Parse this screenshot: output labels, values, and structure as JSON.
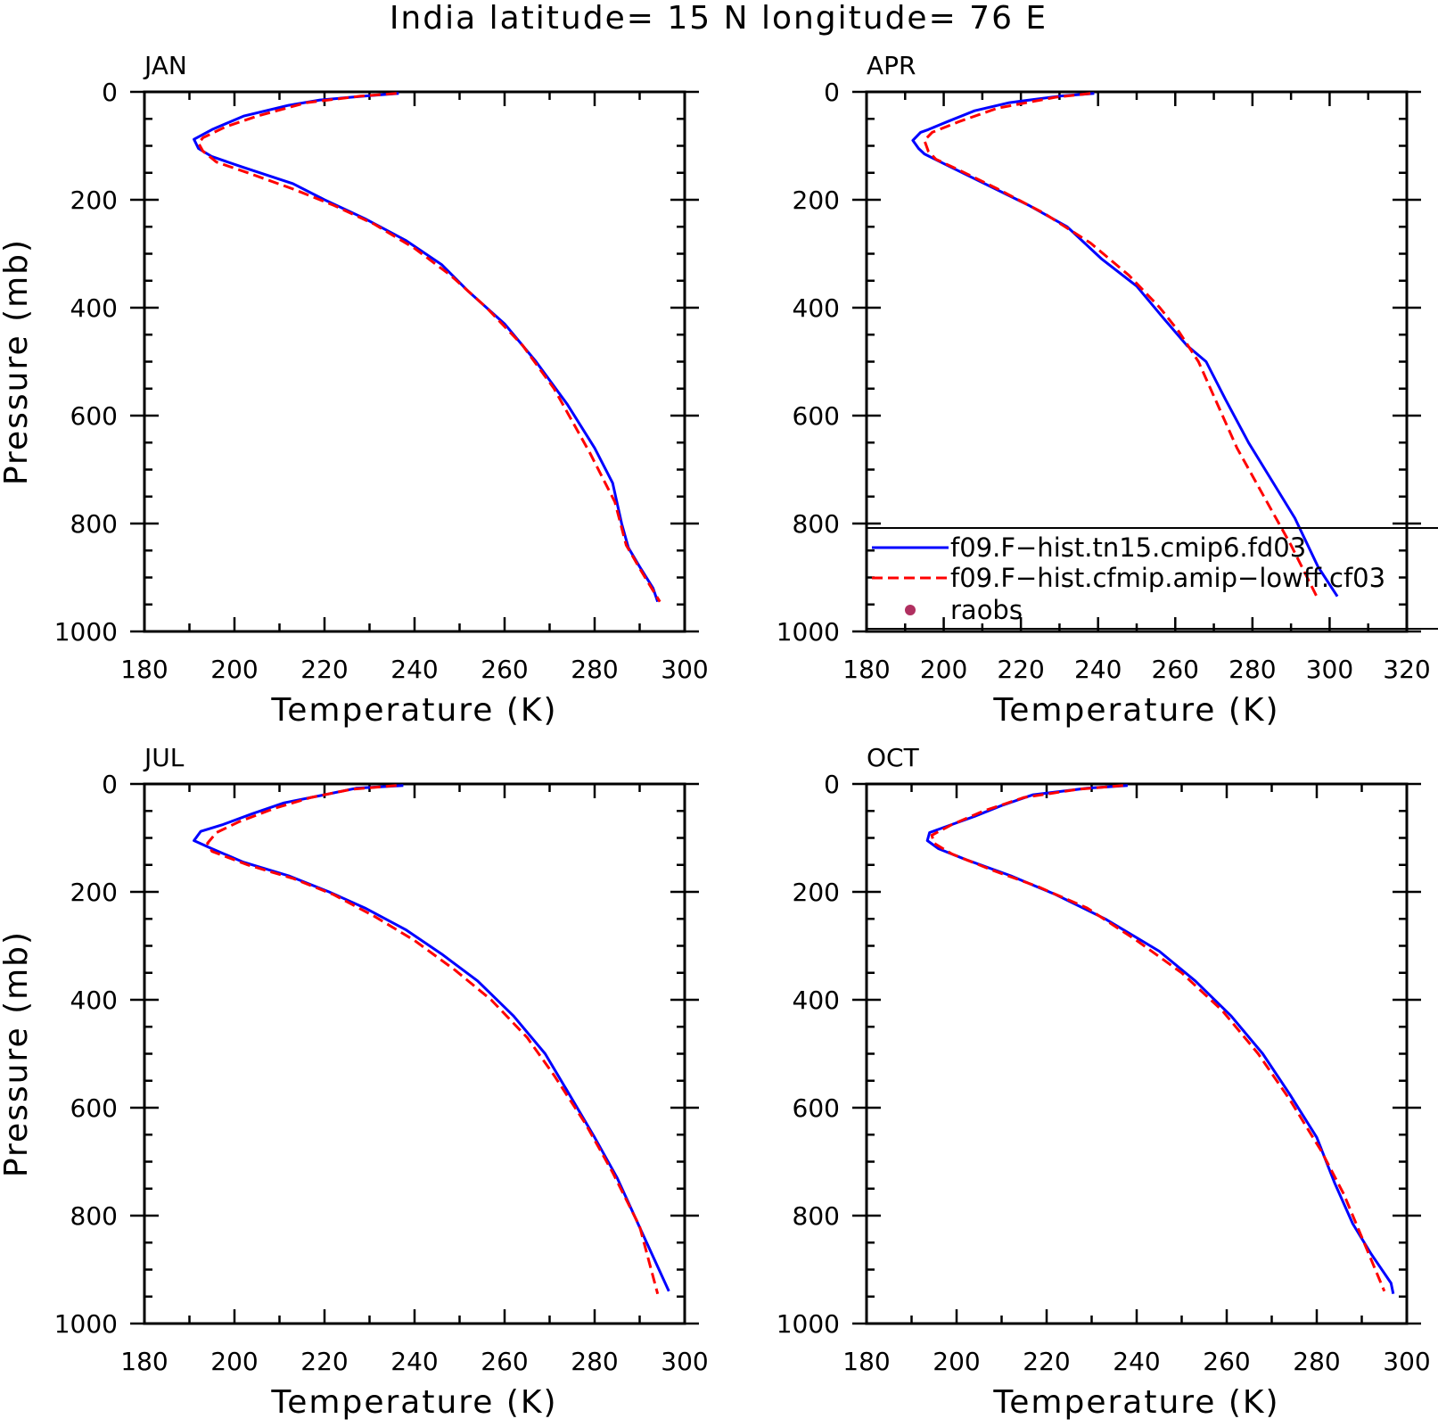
{
  "title": "India  latitude= 15 N longitude= 76 E",
  "legend": {
    "entries": [
      {
        "label": "f09.F−hist.tn15.cmip6.fd03",
        "color": "#0000ff",
        "style": "solid"
      },
      {
        "label": "f09.F−hist.cfmip.amip−lowff.cf03",
        "color": "#ff0000",
        "style": "dashed"
      },
      {
        "label": "raobs",
        "color": "#b03060",
        "style": "dot"
      }
    ]
  },
  "chart_data": [
    {
      "type": "line",
      "panel_label": "JAN",
      "xlabel": "Temperature (K)",
      "ylabel": "Pressure (mb)",
      "xlim": [
        180,
        300
      ],
      "ylim": [
        1000,
        0
      ],
      "x_ticks": [
        180,
        200,
        220,
        240,
        260,
        280,
        300
      ],
      "y_ticks": [
        0,
        200,
        400,
        600,
        800,
        1000
      ],
      "grid": false,
      "series": [
        {
          "name": "f09.F−hist.tn15.cmip6.fd03",
          "color": "#0000ff",
          "dash": "solid",
          "temperature": [
            236.5,
            230.0,
            219.0,
            212.0,
            202.0,
            195.0,
            191.0,
            192.0,
            195.0,
            202.0,
            213.0,
            220.0,
            229.0,
            238.0,
            246.0,
            252.0,
            260.0,
            267.0,
            274.0,
            280.0,
            284.0,
            286.0,
            287.5,
            290.0,
            293.0,
            294.0
          ],
          "pressure": [
            3,
            7,
            15,
            25,
            45,
            70,
            88,
            105,
            120,
            140,
            170,
            200,
            235,
            275,
            320,
            370,
            430,
            500,
            580,
            660,
            725,
            800,
            845,
            880,
            920,
            945
          ]
        },
        {
          "name": "f09.F−hist.cfmip.amip−lowff.cf03",
          "color": "#ff0000",
          "dash": "dashed",
          "temperature": [
            236.0,
            228.0,
            216.0,
            205.0,
            198.0,
            193.0,
            192.0,
            193.0,
            196.0,
            203.0,
            213.0,
            222.0,
            231.0,
            240.0,
            248.0,
            256.0,
            264.0,
            271.0,
            279.0,
            284.5,
            287.0,
            290.5,
            294.5
          ],
          "pressure": [
            3,
            8,
            20,
            45,
            65,
            85,
            95,
            110,
            130,
            150,
            180,
            210,
            245,
            290,
            340,
            400,
            470,
            550,
            670,
            760,
            840,
            890,
            945
          ]
        }
      ]
    },
    {
      "type": "line",
      "panel_label": "APR",
      "xlabel": "Temperature (K)",
      "ylabel": "",
      "xlim": [
        180,
        320
      ],
      "ylim": [
        1000,
        0
      ],
      "x_ticks": [
        180,
        200,
        220,
        240,
        260,
        280,
        300,
        320
      ],
      "y_ticks": [
        0,
        200,
        400,
        600,
        800,
        1000
      ],
      "grid": false,
      "series": [
        {
          "name": "f09.F−hist.tn15.cmip6.fd03",
          "color": "#0000ff",
          "dash": "solid",
          "temperature": [
            239.0,
            230.0,
            217.0,
            208.0,
            201.0,
            196.0,
            194.0,
            192.0,
            193.5,
            195.0,
            202.0,
            212.0,
            222.0,
            232.0,
            241.0,
            250.0,
            257.0,
            263.0,
            268.0,
            273.0,
            279.0,
            285.0,
            291.0,
            297.0,
            302.0
          ],
          "pressure": [
            3,
            8,
            20,
            35,
            55,
            70,
            75,
            90,
            105,
            115,
            140,
            175,
            210,
            250,
            310,
            360,
            420,
            470,
            500,
            570,
            650,
            720,
            790,
            880,
            935
          ]
        },
        {
          "name": "f09.F−hist.cfmip.amip−lowff.cf03",
          "color": "#ff0000",
          "dash": "dashed",
          "temperature": [
            238.0,
            229.0,
            214.0,
            204.0,
            197.0,
            195.0,
            196.0,
            198.0,
            204.0,
            214.0,
            226.0,
            238.0,
            248.0,
            256.0,
            261.0,
            266.0,
            271.0,
            276.0,
            283.0,
            290.0,
            297.0
          ],
          "pressure": [
            3,
            10,
            30,
            55,
            75,
            90,
            110,
            125,
            145,
            180,
            225,
            280,
            340,
            400,
            445,
            500,
            580,
            660,
            750,
            840,
            940
          ]
        }
      ]
    },
    {
      "type": "line",
      "panel_label": "JUL",
      "xlabel": "Temperature (K)",
      "ylabel": "Pressure (mb)",
      "xlim": [
        180,
        300
      ],
      "ylim": [
        1000,
        0
      ],
      "x_ticks": [
        180,
        200,
        220,
        240,
        260,
        280,
        300
      ],
      "y_ticks": [
        0,
        200,
        400,
        600,
        800,
        1000
      ],
      "grid": false,
      "series": [
        {
          "name": "f09.F−hist.tn15.cmip6.fd03",
          "color": "#0000ff",
          "dash": "solid",
          "temperature": [
            237.5,
            227.0,
            220.0,
            211.0,
            204.0,
            197.5,
            192.5,
            191.0,
            195.0,
            202.0,
            212.0,
            221.0,
            229.0,
            238.0,
            246.0,
            254.0,
            262.0,
            269.0,
            274.0,
            280.0,
            285.0,
            291.0,
            296.5
          ],
          "pressure": [
            3,
            8,
            20,
            35,
            55,
            75,
            88,
            105,
            120,
            145,
            170,
            200,
            230,
            270,
            315,
            365,
            430,
            500,
            570,
            655,
            730,
            840,
            940
          ]
        },
        {
          "name": "f09.F−hist.cfmip.amip−lowff.cf03",
          "color": "#ff0000",
          "dash": "dashed",
          "temperature": [
            236.0,
            226.0,
            217.0,
            209.0,
            201.0,
            196.0,
            194.0,
            195.0,
            203.0,
            213.0,
            222.0,
            231.0,
            240.0,
            249.0,
            257.0,
            265.0,
            271.0,
            278.0,
            284.0,
            290.0,
            294.0
          ],
          "pressure": [
            3,
            10,
            25,
            45,
            70,
            90,
            110,
            125,
            150,
            175,
            205,
            245,
            290,
            345,
            400,
            470,
            540,
            630,
            720,
            820,
            945
          ]
        }
      ]
    },
    {
      "type": "line",
      "panel_label": "OCT",
      "xlabel": "Temperature (K)",
      "ylabel": "",
      "xlim": [
        180,
        300
      ],
      "ylim": [
        1000,
        0
      ],
      "x_ticks": [
        180,
        200,
        220,
        240,
        260,
        280,
        300
      ],
      "y_ticks": [
        0,
        200,
        400,
        600,
        800,
        1000
      ],
      "grid": false,
      "series": [
        {
          "name": "f09.F−hist.tn15.cmip6.fd03",
          "color": "#0000ff",
          "dash": "solid",
          "temperature": [
            238.0,
            229.0,
            217.0,
            210.0,
            204.0,
            199.0,
            194.0,
            193.5,
            196.0,
            202.0,
            212.0,
            222.0,
            233.0,
            245.0,
            253.0,
            261.0,
            268.0,
            274.0,
            280.0,
            284.0,
            288.0,
            292.0,
            296.5,
            297.0
          ],
          "pressure": [
            3,
            8,
            20,
            40,
            60,
            75,
            90,
            105,
            120,
            140,
            170,
            205,
            250,
            310,
            365,
            430,
            500,
            575,
            655,
            740,
            815,
            870,
            925,
            945
          ]
        },
        {
          "name": "f09.F−hist.cfmip.amip−lowff.cf03",
          "color": "#ff0000",
          "dash": "dashed",
          "temperature": [
            237.0,
            227.0,
            215.0,
            206.0,
            199.0,
            194.5,
            195.0,
            199.0,
            208.0,
            218.0,
            229.0,
            240.0,
            250.0,
            259.0,
            267.0,
            274.0,
            281.0,
            286.0,
            291.0,
            295.0
          ],
          "pressure": [
            3,
            10,
            25,
            50,
            75,
            95,
            110,
            130,
            160,
            190,
            230,
            290,
            350,
            420,
            500,
            585,
            680,
            760,
            860,
            940
          ]
        }
      ]
    }
  ]
}
